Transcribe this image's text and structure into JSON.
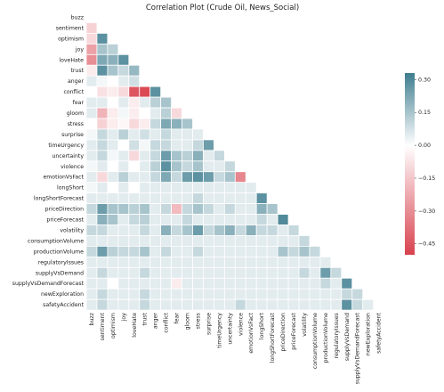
{
  "chart_data": {
    "type": "heatmap",
    "title": "Correlation Plot (Crude Oil, News_Social)",
    "variables": [
      "buzz",
      "sentiment",
      "optimism",
      "joy",
      "loveHate",
      "trust",
      "anger",
      "conflict",
      "fear",
      "gloom",
      "stress",
      "surprise",
      "timeUrgency",
      "uncertainty",
      "violence",
      "emotionVsFact",
      "longShort",
      "longShortForecast",
      "priceDirection",
      "priceForecast",
      "volatility",
      "consumptionVolume",
      "productionVolume",
      "regulatoryIssues",
      "supplyVsDemand",
      "supplyVsDemandForecast",
      "newExploration",
      "safetyAccident"
    ],
    "mask": "upper-triangle-and-diagonal",
    "colorbar": {
      "ticks": [
        0.3,
        0.15,
        0.0,
        -0.15,
        -0.3,
        -0.45
      ],
      "tick_labels": [
        "0.30",
        "0.15",
        "0.00",
        "−0.15",
        "−0.30",
        "−0.45"
      ],
      "vmin": -0.5,
      "vmax": 0.33,
      "cmap": [
        "#d8424e",
        "#ffffff",
        "#3e7d8f"
      ]
    },
    "lower_triangle": [
      [],
      [
        -0.12
      ],
      [
        -0.1,
        0.28
      ],
      [
        -0.25,
        0.15,
        0.12
      ],
      [
        -0.3,
        0.22,
        0.2,
        0.28
      ],
      [
        -0.05,
        0.28,
        0.15,
        0.1,
        0.18
      ],
      [
        0.05,
        0.02,
        0.0,
        0.05,
        0.08,
        0.0
      ],
      [
        0.0,
        -0.08,
        -0.05,
        -0.1,
        -0.45,
        -0.48,
        0.28
      ],
      [
        0.05,
        0.05,
        0.0,
        0.05,
        -0.05,
        0.05,
        0.12,
        0.15
      ],
      [
        0.05,
        -0.2,
        -0.05,
        0.02,
        -0.05,
        0.0,
        0.05,
        0.12,
        -0.1
      ],
      [
        0.0,
        -0.12,
        -0.05,
        -0.02,
        -0.1,
        -0.05,
        0.1,
        0.22,
        0.2,
        0.15
      ],
      [
        0.02,
        0.1,
        0.05,
        0.12,
        0.05,
        0.08,
        0.05,
        0.1,
        0.05,
        0.05,
        0.05
      ],
      [
        0.05,
        0.1,
        0.05,
        0.0,
        0.08,
        0.02,
        0.1,
        0.1,
        0.05,
        0.05,
        0.1,
        0.25
      ],
      [
        0.05,
        0.1,
        0.02,
        0.05,
        -0.1,
        0.05,
        0.1,
        0.25,
        0.15,
        0.12,
        0.2,
        0.05,
        0.1
      ],
      [
        0.02,
        0.05,
        0.0,
        0.05,
        0.0,
        0.05,
        0.12,
        0.28,
        0.15,
        0.1,
        0.15,
        0.05,
        0.05,
        0.1
      ],
      [
        0.05,
        -0.1,
        0.05,
        0.12,
        0.05,
        0.05,
        0.1,
        0.22,
        0.1,
        0.25,
        0.28,
        0.25,
        0.1,
        0.15,
        -0.32
      ],
      [
        0.02,
        0.05,
        0.0,
        0.05,
        0.0,
        0.05,
        0.05,
        0.05,
        0.05,
        0.05,
        0.05,
        0.05,
        0.05,
        0.05,
        0.05,
        0.05
      ],
      [
        0.05,
        0.05,
        0.05,
        0.05,
        0.05,
        0.05,
        0.05,
        0.05,
        0.05,
        0.05,
        0.1,
        0.05,
        0.05,
        0.05,
        0.05,
        0.05,
        0.28
      ],
      [
        0.1,
        0.25,
        0.15,
        0.15,
        0.12,
        0.15,
        0.05,
        0.1,
        -0.18,
        0.1,
        0.15,
        0.1,
        0.05,
        0.1,
        0.05,
        0.05,
        0.2,
        0.15
      ],
      [
        0.05,
        0.2,
        0.15,
        0.05,
        0.1,
        0.12,
        0.05,
        0.05,
        0.05,
        0.1,
        0.05,
        0.05,
        0.05,
        0.05,
        0.05,
        0.05,
        0.1,
        0.05,
        0.3
      ],
      [
        0.1,
        0.1,
        0.05,
        0.05,
        0.05,
        0.1,
        0.05,
        0.2,
        0.1,
        0.15,
        0.25,
        0.1,
        0.15,
        0.2,
        0.1,
        0.2,
        0.1,
        0.1,
        0.05,
        0.1
      ],
      [
        0.05,
        0.05,
        0.05,
        0.05,
        0.05,
        0.05,
        0.05,
        0.05,
        0.05,
        0.05,
        0.05,
        0.05,
        0.05,
        0.05,
        0.05,
        0.05,
        0.05,
        0.05,
        0.05,
        0.05,
        0.1
      ],
      [
        0.1,
        0.25,
        0.12,
        0.1,
        0.1,
        0.15,
        0.05,
        0.1,
        0.05,
        0.05,
        0.1,
        0.05,
        0.05,
        0.05,
        0.05,
        0.05,
        0.05,
        0.05,
        0.15,
        0.1,
        0.15,
        0.1
      ],
      [
        0.05,
        0.05,
        0.05,
        0.05,
        0.05,
        0.05,
        0.05,
        0.05,
        0.05,
        0.05,
        0.05,
        0.05,
        0.05,
        0.05,
        0.05,
        0.05,
        0.05,
        0.05,
        0.05,
        0.05,
        0.05,
        0.05,
        0.05
      ],
      [
        0.05,
        0.1,
        0.05,
        0.05,
        0.05,
        0.1,
        0.05,
        0.05,
        0.05,
        0.05,
        0.05,
        0.05,
        0.05,
        0.05,
        0.05,
        0.05,
        0.05,
        0.05,
        0.05,
        0.05,
        0.1,
        0.05,
        0.25,
        0.1
      ],
      [
        0.05,
        0.05,
        0.0,
        0.05,
        0.05,
        0.05,
        0.05,
        0.05,
        -0.05,
        0.05,
        0.05,
        0.05,
        0.05,
        0.05,
        0.05,
        0.05,
        0.05,
        0.05,
        0.05,
        0.05,
        0.05,
        0.05,
        0.1,
        0.05,
        0.28
      ],
      [
        0.05,
        0.1,
        0.05,
        0.05,
        0.05,
        0.1,
        0.05,
        0.05,
        0.05,
        0.05,
        0.05,
        0.05,
        0.05,
        0.05,
        0.05,
        0.05,
        0.05,
        0.05,
        0.05,
        0.05,
        0.05,
        0.05,
        0.05,
        0.05,
        0.1,
        0.1
      ],
      [
        0.05,
        0.1,
        0.05,
        0.05,
        0.05,
        0.1,
        0.05,
        0.05,
        0.05,
        0.05,
        0.05,
        0.05,
        0.05,
        0.05,
        0.1,
        0.05,
        0.05,
        0.05,
        0.05,
        0.05,
        0.05,
        0.05,
        0.05,
        0.05,
        0.28,
        0.1,
        0.05
      ]
    ]
  }
}
